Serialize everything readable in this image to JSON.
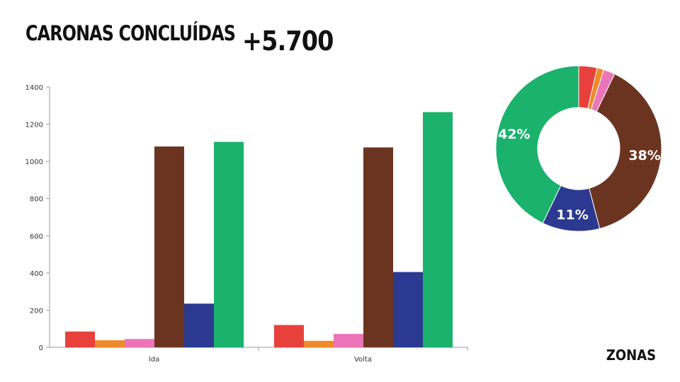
{
  "header": {
    "title": "CARONAS CONCLUÍDAS",
    "total": "+5.700"
  },
  "footer": {
    "label": "ZONAS"
  },
  "colors": [
    "#e8413c",
    "#ee8a2a",
    "#ec74b8",
    "#6b3420",
    "#2b3990",
    "#1ab26d"
  ],
  "chart_data": [
    {
      "type": "bar",
      "categories": [
        "Ida",
        "Volta"
      ],
      "ylim": [
        0,
        1400
      ],
      "yticks": [
        0,
        200,
        400,
        600,
        800,
        1000,
        1200,
        1400
      ],
      "grid": false,
      "series": [
        {
          "values": [
            85,
            120
          ]
        },
        {
          "values": [
            38,
            35
          ]
        },
        {
          "values": [
            45,
            72
          ]
        },
        {
          "values": [
            1080,
            1075
          ]
        },
        {
          "values": [
            235,
            405
          ]
        },
        {
          "values": [
            1105,
            1265
          ]
        }
      ]
    },
    {
      "type": "pie",
      "donut": true,
      "values": [
        3.5,
        1.3,
        2.2,
        38,
        11,
        42
      ],
      "labels": [
        "",
        "",
        "",
        "38%",
        "11%",
        "42%"
      ]
    }
  ]
}
